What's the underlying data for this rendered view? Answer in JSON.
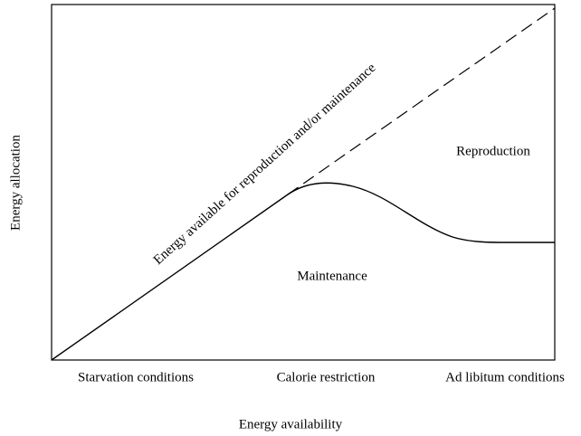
{
  "diagonal_label": "Energy available for reproduction and/or maintenance",
  "regions": [
    "Reproduction",
    "Maintenance"
  ],
  "x_labels": [
    "Starvation conditions",
    "Calorie restriction",
    "Ad libitum conditions"
  ],
  "x_axis_label": "Energy availability",
  "y_axis_label": "Energy allocation"
}
